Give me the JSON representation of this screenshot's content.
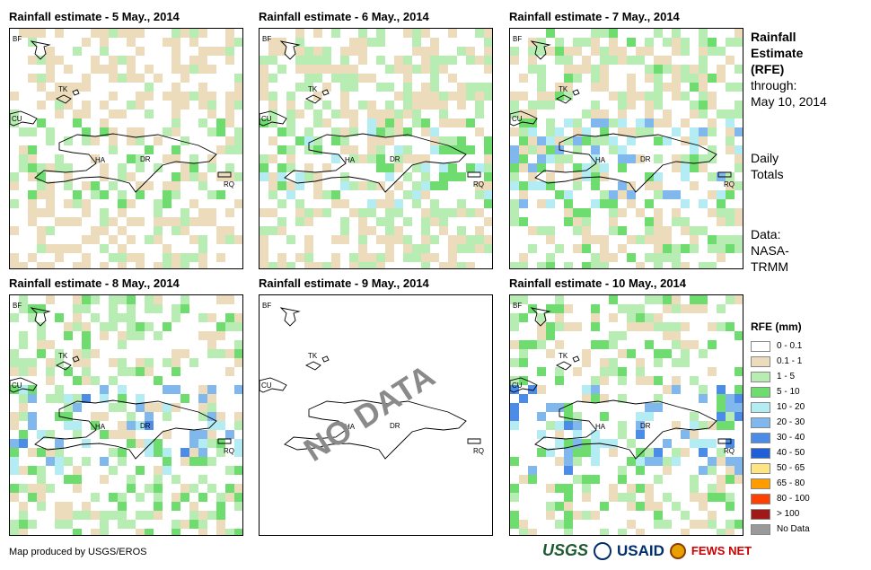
{
  "panels": [
    {
      "title": "Rainfall estimate - 5 May., 2014",
      "no_data": false,
      "seed": 11,
      "prob": 0.45,
      "intensity": 1.6
    },
    {
      "title": "Rainfall estimate - 6 May., 2014",
      "no_data": false,
      "seed": 23,
      "prob": 0.55,
      "intensity": 2.2
    },
    {
      "title": "Rainfall estimate - 7 May., 2014",
      "no_data": false,
      "seed": 37,
      "prob": 0.55,
      "intensity": 2.8
    },
    {
      "title": "Rainfall estimate - 8 May., 2014",
      "no_data": false,
      "seed": 41,
      "prob": 0.5,
      "intensity": 3.2
    },
    {
      "title": "Rainfall estimate - 9 May., 2014",
      "no_data": true,
      "no_data_text": "NO DATA",
      "seed": 0,
      "prob": 0,
      "intensity": 0
    },
    {
      "title": "Rainfall estimate - 10 May., 2014",
      "no_data": false,
      "seed": 59,
      "prob": 0.45,
      "intensity": 3.6
    }
  ],
  "country_labels": {
    "bf": "BF",
    "cu": "CU",
    "tk": "TK",
    "ha": "HA",
    "dr": "DR",
    "rq": "RQ"
  },
  "side": {
    "title_1": "Rainfall",
    "title_2": "Estimate",
    "title_3": "(RFE)",
    "through": "through:",
    "date": "May 10, 2014",
    "daily": "Daily",
    "totals": "Totals",
    "data_label": "Data:",
    "source_1": "NASA-",
    "source_2": "TRMM"
  },
  "legend": {
    "title": "RFE (mm)",
    "items": [
      {
        "label": "0 - 0.1",
        "color": "#ffffff"
      },
      {
        "label": "0.1 - 1",
        "color": "#ecdcbc"
      },
      {
        "label": "1 - 5",
        "color": "#b7ecb2"
      },
      {
        "label": "5 - 10",
        "color": "#6fdc6f"
      },
      {
        "label": "10 - 20",
        "color": "#b4ecf4"
      },
      {
        "label": "20 - 30",
        "color": "#80b8ee"
      },
      {
        "label": "30 - 40",
        "color": "#4a8ce8"
      },
      {
        "label": "40 - 50",
        "color": "#1f5fd8"
      },
      {
        "label": "50 - 65",
        "color": "#ffe482"
      },
      {
        "label": "65 - 80",
        "color": "#ff9c00"
      },
      {
        "label": "80 - 100",
        "color": "#ff4000"
      },
      {
        "label": "> 100",
        "color": "#a01818"
      },
      {
        "label": "No Data",
        "color": "#9a9a9a"
      }
    ]
  },
  "credit": "Map produced by USGS/EROS",
  "logos": {
    "usgs": "USGS",
    "usaid": "USAID",
    "fews": "FEWS NET"
  }
}
